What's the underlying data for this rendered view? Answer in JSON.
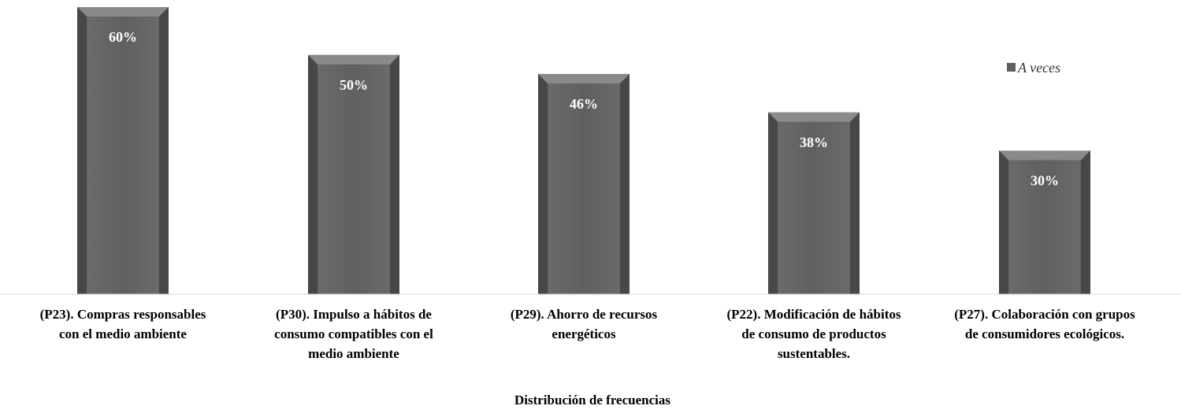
{
  "chart_data": {
    "type": "bar",
    "categories": [
      "(P23).  Compras responsables con el medio ambiente",
      "(P30). Impulso a hábitos de consumo compatibles con el medio ambiente",
      "(P29). Ahorro de recursos energéticos",
      "(P22). Modificación de hábitos de consumo de productos sustentables.",
      "(P27). Colaboración con grupos de consumidores ecológicos."
    ],
    "category_lines": [
      [
        "(P23).  Compras responsables",
        "con el medio ambiente"
      ],
      [
        "(P30). Impulso a hábitos de",
        "consumo compatibles con el",
        "medio ambiente"
      ],
      [
        "(P29). Ahorro de recursos",
        "energéticos"
      ],
      [
        "(P22). Modificación de hábitos",
        "de consumo de productos",
        "sustentables."
      ],
      [
        "(P27). Colaboración con grupos",
        "de consumidores ecológicos."
      ]
    ],
    "series": [
      {
        "name": "A veces",
        "values": [
          60,
          50,
          46,
          38,
          30
        ]
      }
    ],
    "value_labels": [
      "60%",
      "50%",
      "46%",
      "38%",
      "30%"
    ],
    "xlabel": "Distribución de frecuencias",
    "ylabel": "",
    "ylim": [
      0,
      60
    ],
    "legend_position": "top-right",
    "grid": false,
    "colors": {
      "bar": "#5e5e5e",
      "bar_light": "#8a8a8a",
      "bar_dark": "#3e3e3e",
      "axis": "#d9d9d9"
    }
  }
}
